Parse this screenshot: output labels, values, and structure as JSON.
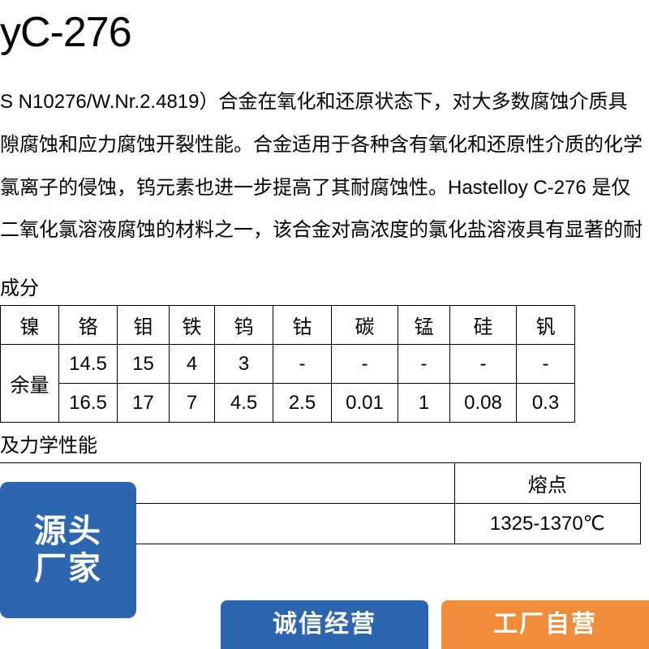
{
  "title": "yC-276",
  "paragraph": {
    "line1": "S N10276/W.Nr.2.4819）合金在氧化和还原状态下，对大多数腐蚀介质具",
    "line2": "隙腐蚀和应力腐蚀开裂性能。合金适用于各种含有氧化和还原性介质的化学",
    "line3": "氯离子的侵蚀，钨元素也进一步提高了其耐腐蚀性。Hastelloy C-276 是仅",
    "line4": "二氧化氯溶液腐蚀的材料之一，该合金对高浓度的氯化盐溶液具有显著的耐"
  },
  "composition": {
    "label": "成分",
    "headers": [
      "镍",
      "铬",
      "钼",
      "铁",
      "钨",
      "钴",
      "碳",
      "锰",
      "硅",
      "钒"
    ],
    "ni_label": "余量",
    "rows": [
      [
        "14.5",
        "15",
        "4",
        "3",
        "-",
        "-",
        "-",
        "-",
        "-"
      ],
      [
        "16.5",
        "17",
        "7",
        "4.5",
        "2.5",
        "0.01",
        "1",
        "0.08",
        "0.3"
      ]
    ]
  },
  "mechanical": {
    "label": "及力学性能",
    "melting_header": "熔点",
    "melting_value": "1325-1370℃"
  },
  "badges": {
    "left_l1": "源头",
    "left_l2": "厂家",
    "mid": "诚信经营",
    "right": "工厂自营"
  },
  "colors": {
    "blue": "#2c66b1",
    "orange": "#f08c3a",
    "text": "#000000",
    "bg": "#ffffff",
    "border": "#000000"
  }
}
